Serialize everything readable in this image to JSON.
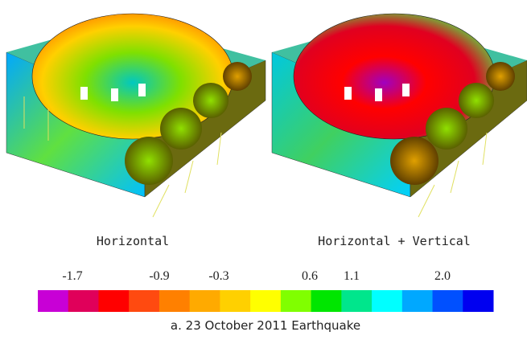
{
  "figure": {
    "panels": [
      {
        "caption": "Horizontal"
      },
      {
        "caption": "Horizontal + Vertical"
      }
    ],
    "colorbar": {
      "labels": [
        "-1.7",
        "-0.9",
        "-0.3",
        "0.6",
        "1.1",
        "2.0"
      ],
      "colors": [
        "#c800d6",
        "#e0005a",
        "#ff0000",
        "#ff4a10",
        "#ff8000",
        "#ffaa00",
        "#ffd000",
        "#ffff00",
        "#80ff00",
        "#00e600",
        "#00e68c",
        "#00ffff",
        "#00a8ff",
        "#0050ff",
        "#0000f0"
      ]
    },
    "caption": "a. 23 October 2011 Earthquake"
  }
}
